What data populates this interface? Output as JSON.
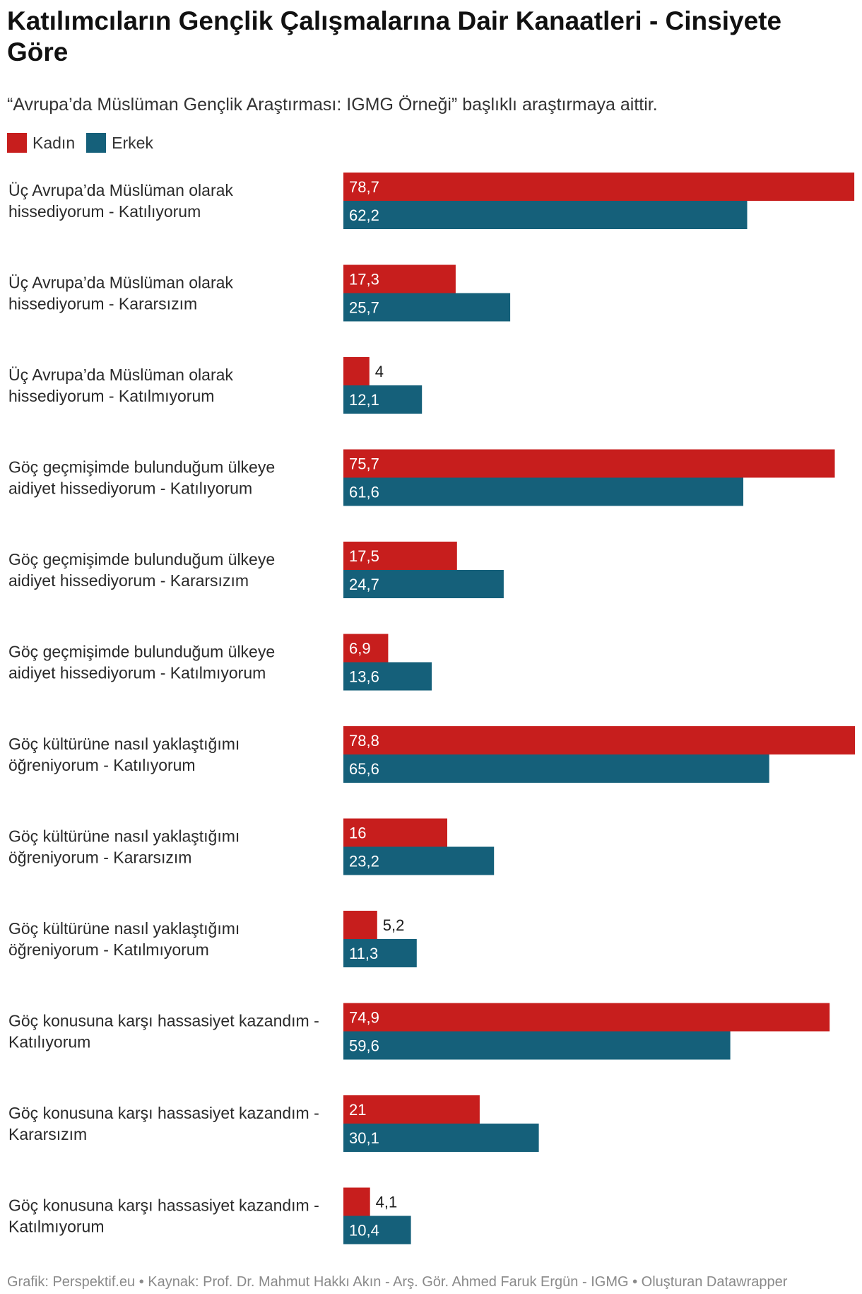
{
  "header": {
    "title": "Katılımcıların Gençlik Çalışmalarına Dair Kanaatleri - Cinsiyete Göre",
    "subtitle": "“Avrupa’da Müslüman Gençlik Araştırması: IGMG Örneği” başlıklı araştırmaya aittir."
  },
  "colors": {
    "kadin": "#c71e1d",
    "erkek": "#15607a",
    "label_inside": "#ffffff",
    "label_outside": "#1d1d1d"
  },
  "footer": "Grafik: Perspektif.eu • Kaynak: Prof. Dr. Mahmut Hakkı Akın - Arş. Gör. Ahmed Faruk Ergün - IGMG • Oluşturan Datawrapper",
  "chart_data": {
    "type": "bar",
    "orientation": "horizontal",
    "title": "Katılımcıların Gençlik Çalışmalarına Dair Kanaatleri - Cinsiyete Göre",
    "legend_position": "top-left",
    "xlim": [
      0,
      78.8
    ],
    "categories": [
      [
        "Üç Avrupa’da Müslüman olarak",
        "hissediyorum - Katılıyorum"
      ],
      [
        "Üç Avrupa’da Müslüman olarak",
        "hissediyorum - Kararsızım"
      ],
      [
        "Üç Avrupa’da Müslüman olarak",
        "hissediyorum - Katılmıyorum"
      ],
      [
        "Göç geçmişimde bulunduğum ülkeye",
        "aidiyet hissediyorum - Katılıyorum"
      ],
      [
        "Göç geçmişimde bulunduğum ülkeye",
        "aidiyet hissediyorum - Kararsızım"
      ],
      [
        "Göç geçmişimde bulunduğum ülkeye",
        "aidiyet hissediyorum - Katılmıyorum"
      ],
      [
        "Göç kültürüne nasıl yaklaştığımı",
        "öğreniyorum - Katılıyorum"
      ],
      [
        "Göç kültürüne nasıl yaklaştığımı",
        "öğreniyorum - Kararsızım"
      ],
      [
        "Göç kültürüne nasıl yaklaştığımı",
        "öğreniyorum - Katılmıyorum"
      ],
      [
        "Göç konusuna karşı hassasiyet kazandım -",
        "Katılıyorum"
      ],
      [
        "Göç konusuna karşı hassasiyet kazandım -",
        "Kararsızım"
      ],
      [
        "Göç konusuna karşı hassasiyet kazandım -",
        "Katılmıyorum"
      ]
    ],
    "series": [
      {
        "name": "Kadın",
        "color": "#c71e1d",
        "values": [
          78.7,
          17.3,
          4,
          75.7,
          17.5,
          6.9,
          78.8,
          16,
          5.2,
          74.9,
          21,
          4.1
        ],
        "labels": [
          "78,7",
          "17,3",
          "4",
          "75,7",
          "17,5",
          "6,9",
          "78,8",
          "16",
          "5,2",
          "74,9",
          "21",
          "4,1"
        ]
      },
      {
        "name": "Erkek",
        "color": "#15607a",
        "values": [
          62.2,
          25.7,
          12.1,
          61.6,
          24.7,
          13.6,
          65.6,
          23.2,
          11.3,
          59.6,
          30.1,
          10.4
        ],
        "labels": [
          "62,2",
          "25,7",
          "12,1",
          "61,6",
          "24,7",
          "13,6",
          "65,6",
          "23,2",
          "11,3",
          "59,6",
          "30,1",
          "10,4"
        ]
      }
    ]
  }
}
